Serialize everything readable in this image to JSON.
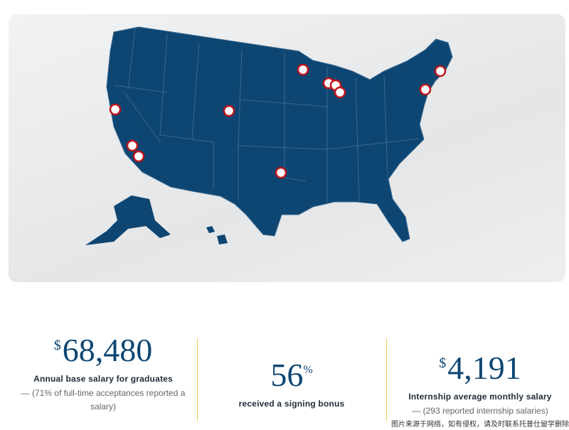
{
  "stats": [
    {
      "currency": "$",
      "value": "68,480",
      "label": "Annual base salary for graduates",
      "note": "— (71% of full-time acceptances reported a salary)"
    },
    {
      "value": "56",
      "unit": "%",
      "label": "received a signing bonus"
    },
    {
      "currency": "$",
      "value": "4,191",
      "label": "Internship average monthly salary",
      "note": "— (293 reported internship salaries)"
    }
  ],
  "watermark": "图片来源于网络，如有侵权，请及时联系托普仕留学删除"
}
